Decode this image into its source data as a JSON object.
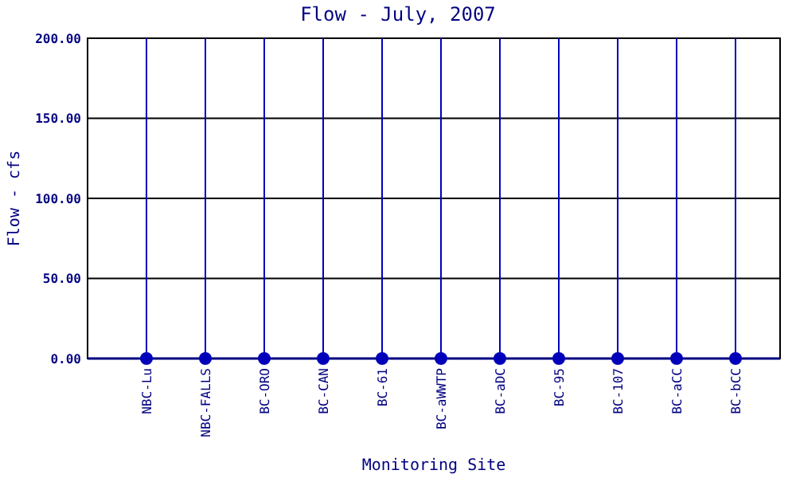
{
  "chart_data": {
    "type": "scatter",
    "title": "Flow - July, 2007",
    "xlabel": "Monitoring Site",
    "ylabel": "Flow - cfs",
    "categories": [
      "NBC-Lu",
      "NBC-FALLS",
      "BC-ORO",
      "BC-CAN",
      "BC-61",
      "BC-aWWTP",
      "BC-aDC",
      "BC-95",
      "BC-107",
      "BC-aCC",
      "BC-bCC"
    ],
    "series": [
      {
        "color": "#0000bb",
        "values": [
          0,
          0,
          0,
          0,
          0,
          0,
          0,
          0,
          0,
          0,
          0
        ]
      }
    ],
    "ylim": [
      0,
      200
    ],
    "yticks": [
      {
        "value": 0,
        "label": "0.00"
      },
      {
        "value": 50,
        "label": "50.00"
      },
      {
        "value": 100,
        "label": "100.00"
      },
      {
        "value": 150,
        "label": "150.00"
      },
      {
        "value": 200,
        "label": "200.00"
      }
    ],
    "grid": true,
    "marker": "circle"
  }
}
